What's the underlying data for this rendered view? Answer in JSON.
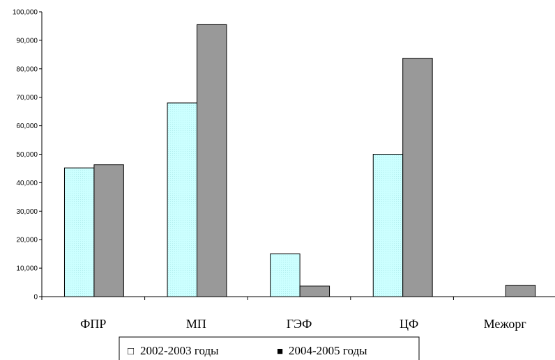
{
  "chart_data": {
    "type": "bar",
    "categories": [
      "ФПР",
      "МП",
      "ГЭФ",
      "ЦФ",
      "Межорг"
    ],
    "series": [
      {
        "name": "2002-2003 годы",
        "values": [
          45200,
          68000,
          15000,
          50000,
          0
        ],
        "color": "#ccffff"
      },
      {
        "name": "2004-2005 годы",
        "values": [
          46300,
          95500,
          3700,
          83700,
          4000
        ],
        "color": "#999999"
      }
    ],
    "yticks": [
      "0",
      "10,000",
      "20,000",
      "30,000",
      "40,000",
      "50,000",
      "60,000",
      "70,000",
      "80,000",
      "90,000",
      "100,000"
    ],
    "ylim": [
      0,
      100000
    ],
    "grid": false,
    "legend": {
      "position": "bottom",
      "markers": [
        "□",
        "■"
      ]
    },
    "title": "",
    "xlabel": "",
    "ylabel": ""
  }
}
